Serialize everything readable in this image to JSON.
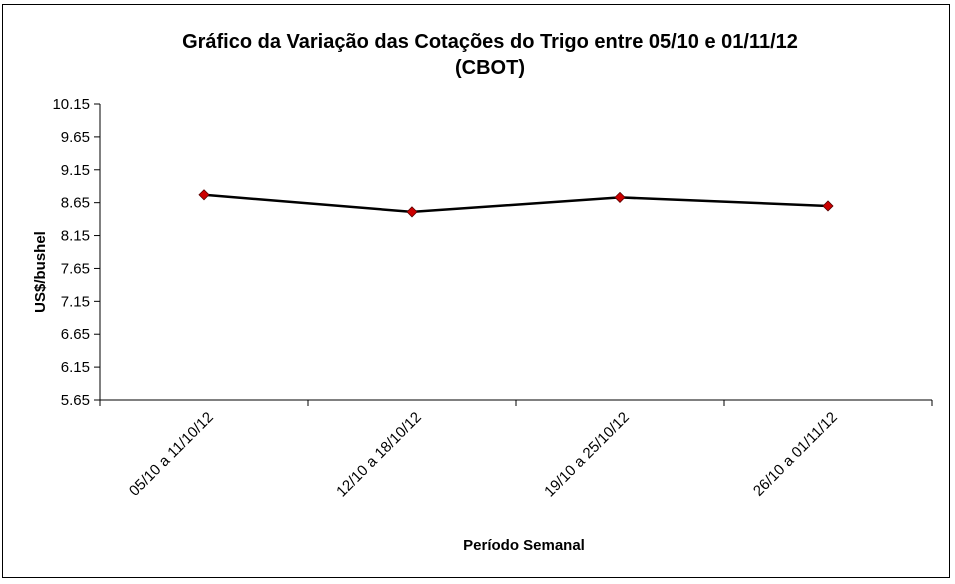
{
  "chart_data": {
    "type": "line",
    "title": "Gráfico da Variação das Cotações do Trigo entre 05/10 e 01/11/12",
    "subtitle": "(CBOT)",
    "xlabel": "Período Semanal",
    "ylabel": "US$/bushel",
    "categories": [
      "05/10 a 11/10/12",
      "12/10 a 18/10/12",
      "19/10 a 25/10/12",
      "26/10 a 01/11/12"
    ],
    "values": [
      8.77,
      8.51,
      8.73,
      8.6
    ],
    "ylim": [
      5.65,
      10.15
    ],
    "yticks": [
      "10.15",
      "9.65",
      "9.15",
      "8.65",
      "8.15",
      "7.65",
      "7.15",
      "6.65",
      "6.15",
      "5.65"
    ],
    "grid": false,
    "legend": "none",
    "line_color": "#000000",
    "marker_color": "#cc0000"
  }
}
